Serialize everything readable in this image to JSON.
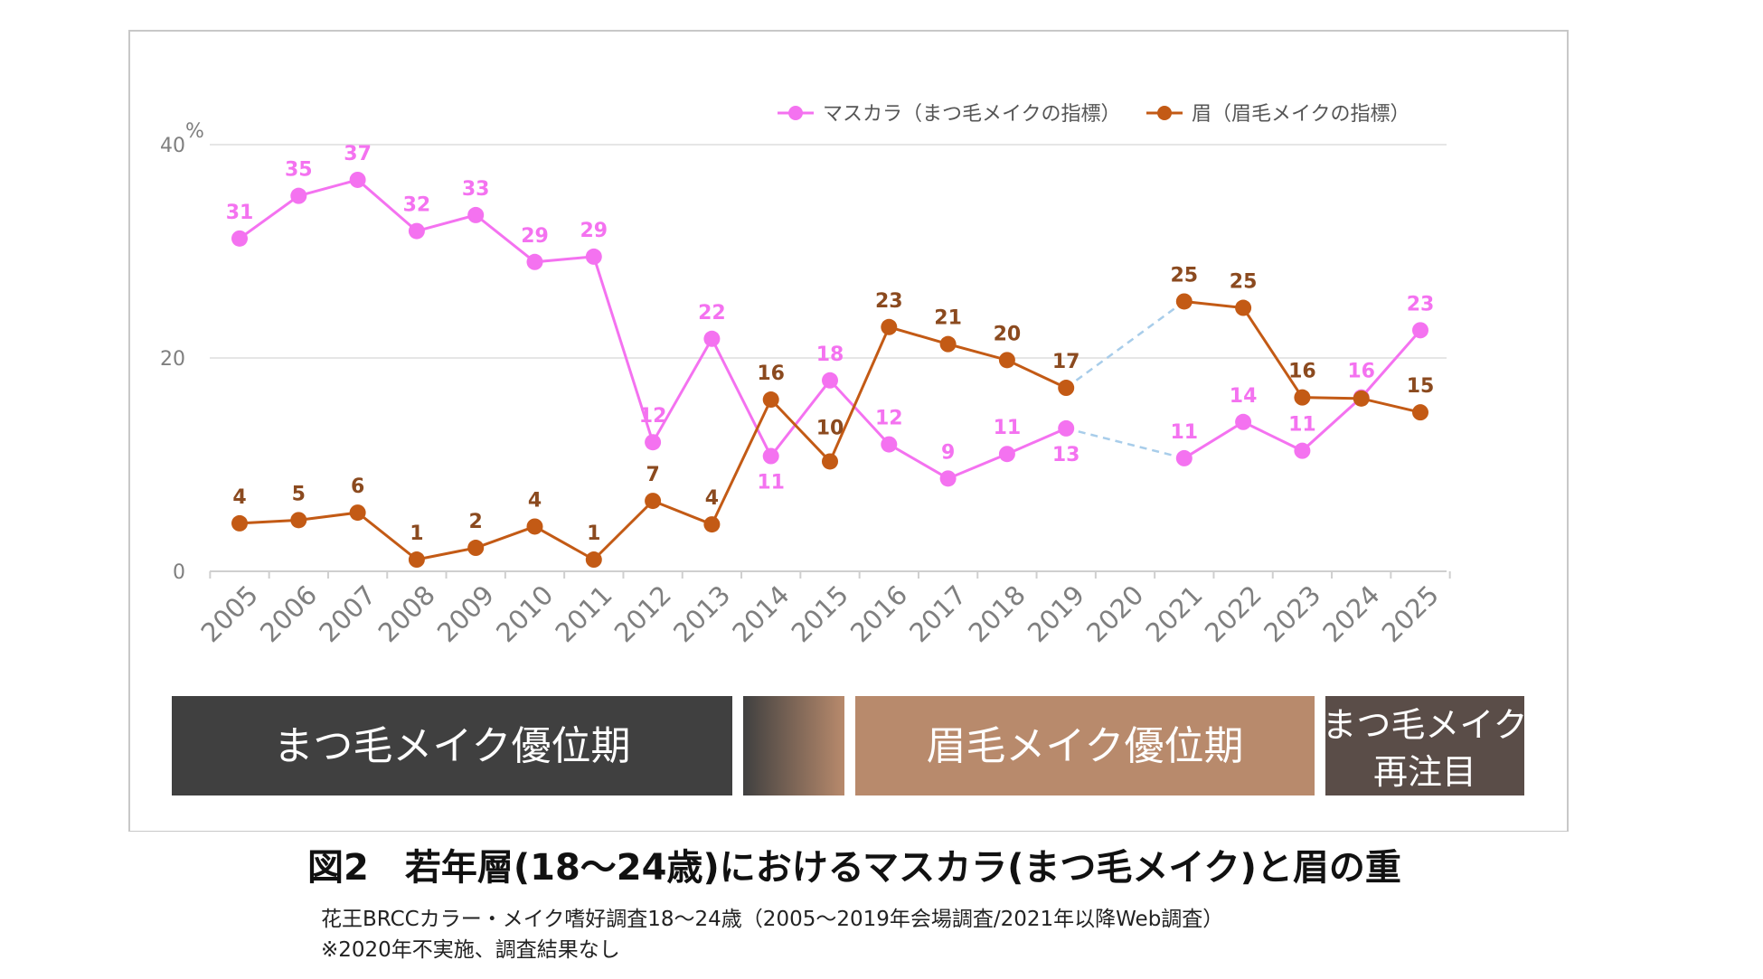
{
  "chart_data": {
    "type": "line",
    "x": [
      "2005",
      "2006",
      "2007",
      "2008",
      "2009",
      "2010",
      "2011",
      "2012",
      "2013",
      "2014",
      "2015",
      "2016",
      "2017",
      "2018",
      "2019",
      "2020",
      "2021",
      "2022",
      "2023",
      "2024",
      "2025"
    ],
    "y_unit": "%",
    "ylim": [
      0,
      40
    ],
    "yticks": [
      0,
      20,
      40
    ],
    "grid": true,
    "legend_position": "top-right",
    "series": [
      {
        "name": "マスカラ（まつ毛メイクの指標）",
        "color": "#f472f0",
        "values": [
          31.2,
          35.2,
          36.7,
          31.9,
          33.4,
          29.0,
          29.5,
          12.1,
          21.8,
          10.8,
          17.9,
          11.9,
          8.7,
          11.0,
          13.4,
          null,
          10.6,
          14.0,
          11.3,
          16.3,
          22.6
        ],
        "labels": [
          "31",
          "35",
          "37",
          "32",
          "33",
          "29",
          "29",
          "12",
          "22",
          "11",
          "18",
          "12",
          "9",
          "11",
          "13",
          "",
          "11",
          "14",
          "11",
          "16",
          "23"
        ]
      },
      {
        "name": "眉（眉毛メイクの指標）",
        "color": "#c35a15",
        "values": [
          4.5,
          4.8,
          5.5,
          1.1,
          2.2,
          4.2,
          1.1,
          6.6,
          4.4,
          16.1,
          10.3,
          22.9,
          21.3,
          19.8,
          17.2,
          null,
          25.3,
          24.7,
          16.3,
          16.2,
          14.9
        ],
        "labels": [
          "4",
          "5",
          "6",
          "1",
          "2",
          "4",
          "1",
          "7",
          "4",
          "16",
          "10",
          "23",
          "21",
          "20",
          "17",
          "",
          "25",
          "25",
          "16",
          "",
          "15"
        ]
      }
    ]
  },
  "phases": [
    {
      "label": "まつ毛メイク優位期"
    },
    {
      "label": ""
    },
    {
      "label": "眉毛メイク優位期"
    },
    {
      "label_line1": "まつ毛メイク",
      "label_line2": "再注目"
    }
  ],
  "colors": {
    "phase_dark": "#404040",
    "phase_brown": "#b88a6c",
    "phase_mixed": "#5a4d48",
    "dashed_gap": "#a8cdea"
  },
  "figure": {
    "title": "図2　若年層(18～24歳)におけるマスカラ(まつ毛メイク)と眉の重",
    "source": "花王BRCCカラー・メイク嗜好調査18～24歳（2005～2019年会場調査/2021年以降Web調査）",
    "note": "※2020年不実施、調査結果なし"
  }
}
